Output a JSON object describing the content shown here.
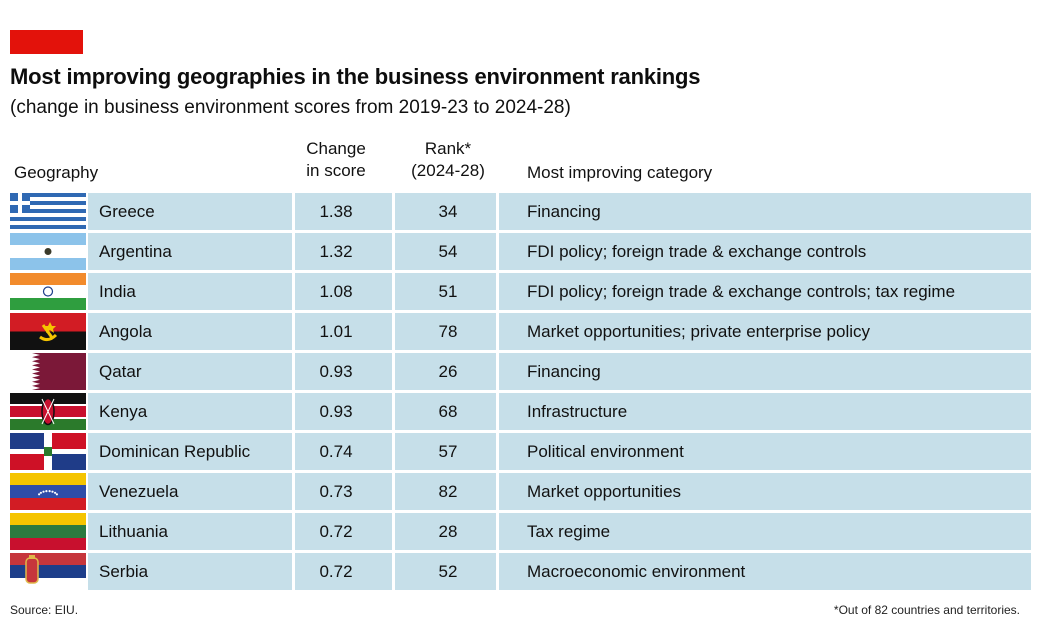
{
  "header": {
    "title": "Most improving geographies in the business environment rankings",
    "subtitle": "(change in business environment scores from 2019-23 to 2024-28)"
  },
  "columns": {
    "geography": "Geography",
    "change_line1": "Change",
    "change_line2": "in score",
    "rank_line1": "Rank*",
    "rank_line2": "(2024-28)",
    "category": "Most improving category"
  },
  "chart_data": {
    "type": "table",
    "title": "Most improving geographies in the business environment rankings",
    "subtitle": "(change in business environment scores from 2019-23 to 2024-28)",
    "columns": [
      "Geography",
      "Change in score",
      "Rank* (2024-28)",
      "Most improving category"
    ],
    "rows": [
      {
        "geography": "Greece",
        "change": "1.38",
        "rank": "34",
        "category": "Financing",
        "flag": "greece-flag-icon"
      },
      {
        "geography": "Argentina",
        "change": "1.32",
        "rank": "54",
        "category": "FDI policy; foreign trade & exchange controls",
        "flag": "argentina-flag-icon"
      },
      {
        "geography": "India",
        "change": "1.08",
        "rank": "51",
        "category": "FDI policy; foreign trade & exchange controls; tax regime",
        "flag": "india-flag-icon"
      },
      {
        "geography": "Angola",
        "change": "1.01",
        "rank": "78",
        "category": "Market opportunities; private enterprise policy",
        "flag": "angola-flag-icon"
      },
      {
        "geography": "Qatar",
        "change": "0.93",
        "rank": "26",
        "category": "Financing",
        "flag": "qatar-flag-icon"
      },
      {
        "geography": "Kenya",
        "change": "0.93",
        "rank": "68",
        "category": "Infrastructure",
        "flag": "kenya-flag-icon"
      },
      {
        "geography": "Dominican Republic",
        "change": "0.74",
        "rank": "57",
        "category": "Political environment",
        "flag": "dominican-republic-flag-icon"
      },
      {
        "geography": "Venezuela",
        "change": "0.73",
        "rank": "82",
        "category": "Market opportunities",
        "flag": "venezuela-flag-icon"
      },
      {
        "geography": "Lithuania",
        "change": "0.72",
        "rank": "28",
        "category": "Tax regime",
        "flag": "lithuania-flag-icon"
      },
      {
        "geography": "Serbia",
        "change": "0.72",
        "rank": "52",
        "category": "Macroeconomic environment",
        "flag": "serbia-flag-icon"
      }
    ]
  },
  "colors": {
    "accent_tag": "#e3120b",
    "row_background": "#c6dfe9"
  },
  "footer": {
    "source": "Source: EIU.",
    "footnote": "*Out of 82 countries and territories."
  }
}
